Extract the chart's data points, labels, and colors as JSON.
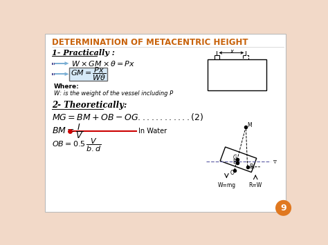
{
  "title": "DETERMINATION OF METACENTRIC HEIGHT",
  "title_color": "#C8620A",
  "bg_color": "#FFFFFF",
  "slide_bg": "#F2D9C8",
  "section1_label": "1- Practically :",
  "where_label": "Where:",
  "where_text": "W: is the weight of the vessel including P",
  "section2_label": "2- Theoretically:",
  "in_water_label": "In Water",
  "page_number": "9",
  "page_circle_color": "#E07820",
  "arrow_color": "#7BAFD4",
  "box_bg_color": "#D6EAF8",
  "red_dot_color": "#CC0000",
  "red_line_color": "#CC0000",
  "water_line_color": "#6666AA",
  "dashed_line_color": "#888888"
}
